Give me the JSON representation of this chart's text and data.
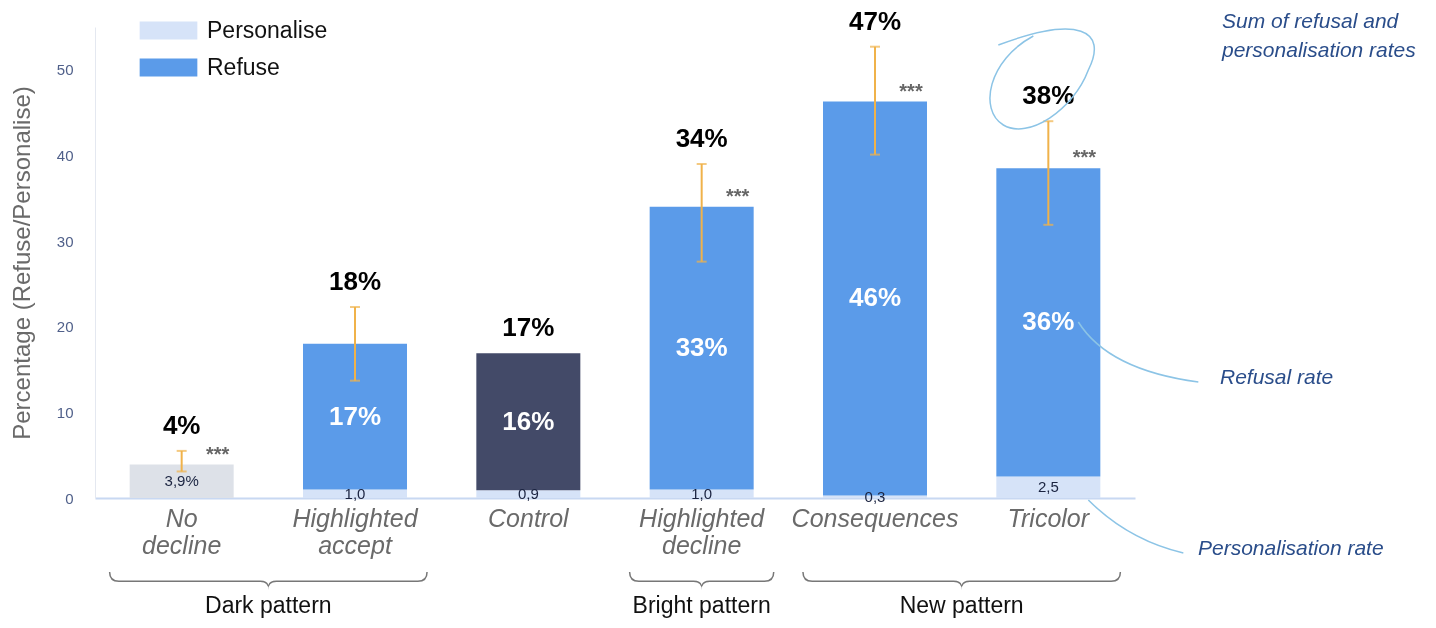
{
  "chart_data": {
    "type": "bar",
    "stacked": true,
    "ylabel": "Percentage (Refuse/Personalise)",
    "categories": [
      "No decline",
      "Highlighted accept",
      "Control",
      "Highlighted decline",
      "Consequences",
      "Tricolor"
    ],
    "series": [
      {
        "name": "Personalise",
        "color": "#d6e3f8",
        "colors": [
          "#dde1e8",
          "#d6e3f8",
          "#d6e3f8",
          "#d6e3f8",
          "#d6e3f8",
          "#d6e3f8"
        ],
        "values": [
          3.9,
          1.0,
          0.9,
          1.0,
          0.3,
          2.5
        ],
        "value_labels": [
          "3,9%",
          "1,0",
          "0,9",
          "1,0",
          "0,3",
          "2,5"
        ],
        "errors": [
          [
            3.1,
            5.5
          ],
          null,
          null,
          null,
          null,
          null
        ]
      },
      {
        "name": "Refuse",
        "color": "#5b9be9",
        "colors": [
          "#5b9be9",
          "#5b9be9",
          "#434a68",
          "#5b9be9",
          "#5b9be9",
          "#5b9be9"
        ],
        "values": [
          null,
          17,
          16,
          33,
          46,
          36
        ],
        "value_labels": [
          null,
          "17%",
          "16%",
          "33%",
          "46%",
          "36%"
        ],
        "errors": [
          null,
          [
            13.7,
            22.3
          ],
          null,
          [
            27.6,
            39.0
          ],
          [
            40.1,
            52.7
          ],
          [
            31.9,
            44.0
          ]
        ]
      }
    ],
    "totals": [
      "4%",
      "18%",
      "17%",
      "34%",
      "47%",
      "38%"
    ],
    "ylim": [
      0,
      55
    ],
    "yticks": [
      0,
      10,
      20,
      30,
      40,
      50
    ],
    "grid": false,
    "legend": "top left",
    "annotations": [
      {
        "text": "***",
        "x": "No decline",
        "y": 3.9
      },
      {
        "text": "***",
        "x": "Highlighted decline",
        "y": 34
      },
      {
        "text": "***",
        "x": "Consequences",
        "y": 46.3
      },
      {
        "text": "***",
        "x": "Tricolor",
        "y": 38.5
      },
      "Sum of refusal and personalisation rates",
      "Refusal rate",
      "Personalisation rate",
      "Dark pattern",
      "Bright pattern",
      "New pattern"
    ]
  }
}
